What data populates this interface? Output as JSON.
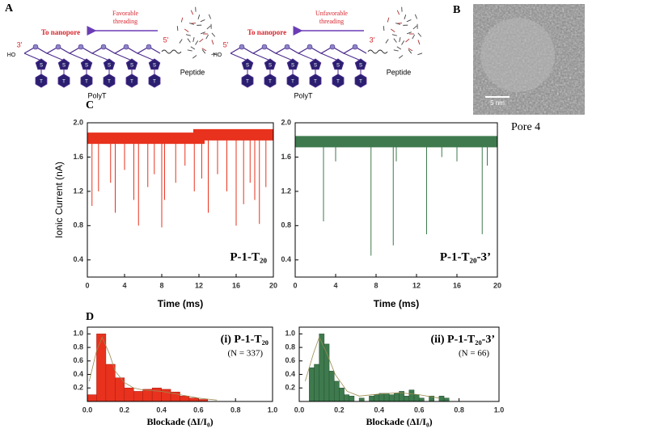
{
  "panels": {
    "a": "A",
    "b": "B",
    "c": "C",
    "d": "D"
  },
  "diagram": {
    "monomer": {
      "sugar": "S",
      "base": "T"
    },
    "constructs": [
      {
        "threading": [
          "Favorable",
          "threading"
        ],
        "direction": "To nanopore",
        "peptide_end": "5'",
        "free_end": "3'",
        "hydroxyl": "HO",
        "backbone": "PolyT",
        "peptide": "Peptide"
      },
      {
        "threading": [
          "Unfavorable",
          "threading"
        ],
        "direction": "To nanopore",
        "peptide_end": "3'",
        "free_end": "5'",
        "hydroxyl": "HO",
        "backbone": "PolyT",
        "peptide": "Peptide"
      }
    ]
  },
  "micrograph": {
    "scale_bar": "5 nm",
    "caption": "Pore 4"
  },
  "chart_data": [
    {
      "type": "line",
      "label": "P-1-T₂₀",
      "color": "#e8321e",
      "ylabel": "Ionic Current (nA)",
      "xlabel": "Time (ms)",
      "xlim": [
        0,
        20
      ],
      "xticks": [
        0,
        4,
        8,
        12,
        16,
        20
      ],
      "ylim": [
        0.2,
        2.0
      ],
      "yticks": [
        0.4,
        0.8,
        1.2,
        1.6,
        {
          "value": 2.0,
          "label": "2.0"
        }
      ],
      "baseline": {
        "x": [
          0,
          12,
          12,
          20
        ],
        "values": [
          1.82,
          1.82,
          1.86,
          1.86
        ]
      },
      "events": {
        "x": [
          0.5,
          1.2,
          2.5,
          3,
          4,
          5,
          5.5,
          6.5,
          7.2,
          8,
          8.3,
          9.5,
          10.5,
          11.5,
          12.3,
          13,
          14,
          15,
          16,
          16.8,
          17.5,
          18,
          18.5,
          19.2
        ],
        "values": [
          1.03,
          1.2,
          1.3,
          0.95,
          1.45,
          1.1,
          0.8,
          1.25,
          1.4,
          0.78,
          1.1,
          1.3,
          1.5,
          1.2,
          1.35,
          0.95,
          1.4,
          1.2,
          0.8,
          1.05,
          1.3,
          1.1,
          0.82,
          1.25
        ]
      }
    },
    {
      "type": "line",
      "label": "P-1-T₂₀-3’",
      "color": "#3e7a4e",
      "xlabel": "Time (ms)",
      "xlim": [
        0,
        20
      ],
      "xticks": [
        0,
        4,
        8,
        12,
        16,
        20
      ],
      "ylim": [
        0.2,
        2.0
      ],
      "yticks": [
        0.4,
        0.8,
        1.2,
        1.6,
        {
          "value": 2.0,
          "label": "2.0"
        }
      ],
      "baseline": {
        "x": [
          0,
          20
        ],
        "values": [
          1.78,
          1.78
        ]
      },
      "events": {
        "x": [
          2.8,
          4,
          7.5,
          9.7,
          10,
          13,
          14.5,
          16,
          18.5,
          19
        ],
        "values": [
          0.85,
          1.55,
          0.45,
          0.57,
          1.55,
          0.7,
          1.6,
          1.55,
          0.7,
          1.5
        ]
      }
    },
    {
      "type": "histogram",
      "label": "(i) P-1-T₂₀",
      "note": "(N = 337)",
      "color": "#e8321e",
      "xlabel": "Blockade (ΔI/I₀)",
      "xlim": [
        0,
        1.0
      ],
      "xticks": [
        {
          "value": 0,
          "label": "0.0"
        },
        0.2,
        0.4,
        0.6,
        0.8,
        {
          "value": 1.0,
          "label": "1.0"
        }
      ],
      "ylim": [
        0,
        1.1
      ],
      "yticks": [
        0.2,
        0.4,
        0.6,
        0.8,
        {
          "value": 1.0,
          "label": "1.0"
        }
      ],
      "bins": [
        0,
        0.05,
        0.1,
        0.15,
        0.2,
        0.25,
        0.3,
        0.35,
        0.4,
        0.45,
        0.5,
        0.55,
        0.6,
        0.65
      ],
      "values": [
        0.1,
        1.0,
        0.55,
        0.35,
        0.2,
        0.15,
        0.18,
        0.2,
        0.18,
        0.14,
        0.08,
        0.05,
        0.03
      ],
      "fit": {
        "x": [
          0.01,
          0.05,
          0.08,
          0.12,
          0.15,
          0.2,
          0.25,
          0.3,
          0.4,
          0.5,
          0.6,
          0.7
        ],
        "values": [
          0.3,
          0.75,
          0.95,
          0.7,
          0.45,
          0.28,
          0.2,
          0.17,
          0.15,
          0.1,
          0.05,
          0.02
        ]
      }
    },
    {
      "type": "histogram",
      "label": "(ii) P-1-T₂₀-3’",
      "note": "(N = 66)",
      "color": "#3e7a4e",
      "xlabel": "Blockade (ΔI/I₀)",
      "xlim": [
        0,
        1.0
      ],
      "xticks": [
        {
          "value": 0,
          "label": "0.0"
        },
        0.2,
        0.4,
        0.6,
        0.8,
        {
          "value": 1.0,
          "label": "1.0"
        }
      ],
      "ylim": [
        0,
        1.1
      ],
      "yticks": [
        0.2,
        0.4,
        0.6,
        0.8,
        {
          "value": 1.0,
          "label": "1.0"
        }
      ],
      "bins": [
        0.05,
        0.075,
        0.1,
        0.125,
        0.15,
        0.175,
        0.2,
        0.225,
        0.25,
        0.275,
        0.3,
        0.325,
        0.35,
        0.375,
        0.4,
        0.425,
        0.45,
        0.475,
        0.5,
        0.525,
        0.55,
        0.575,
        0.6,
        0.625,
        0.65,
        0.675,
        0.7,
        0.725,
        0.75
      ],
      "values": [
        0.5,
        0.55,
        1.0,
        0.85,
        0.45,
        0.3,
        0.2,
        0.1,
        0.08,
        0,
        0.05,
        0,
        0.08,
        0.1,
        0.12,
        0.12,
        0.1,
        0.12,
        0.15,
        0.08,
        0.17,
        0.1,
        0.05,
        0,
        0.08,
        0,
        0.08,
        0.05
      ],
      "fit": {
        "x": [
          0.03,
          0.07,
          0.1,
          0.14,
          0.18,
          0.24,
          0.3,
          0.4,
          0.5,
          0.6,
          0.7
        ],
        "values": [
          0.3,
          0.7,
          0.95,
          0.7,
          0.4,
          0.15,
          0.08,
          0.11,
          0.13,
          0.1,
          0.05
        ]
      }
    }
  ]
}
